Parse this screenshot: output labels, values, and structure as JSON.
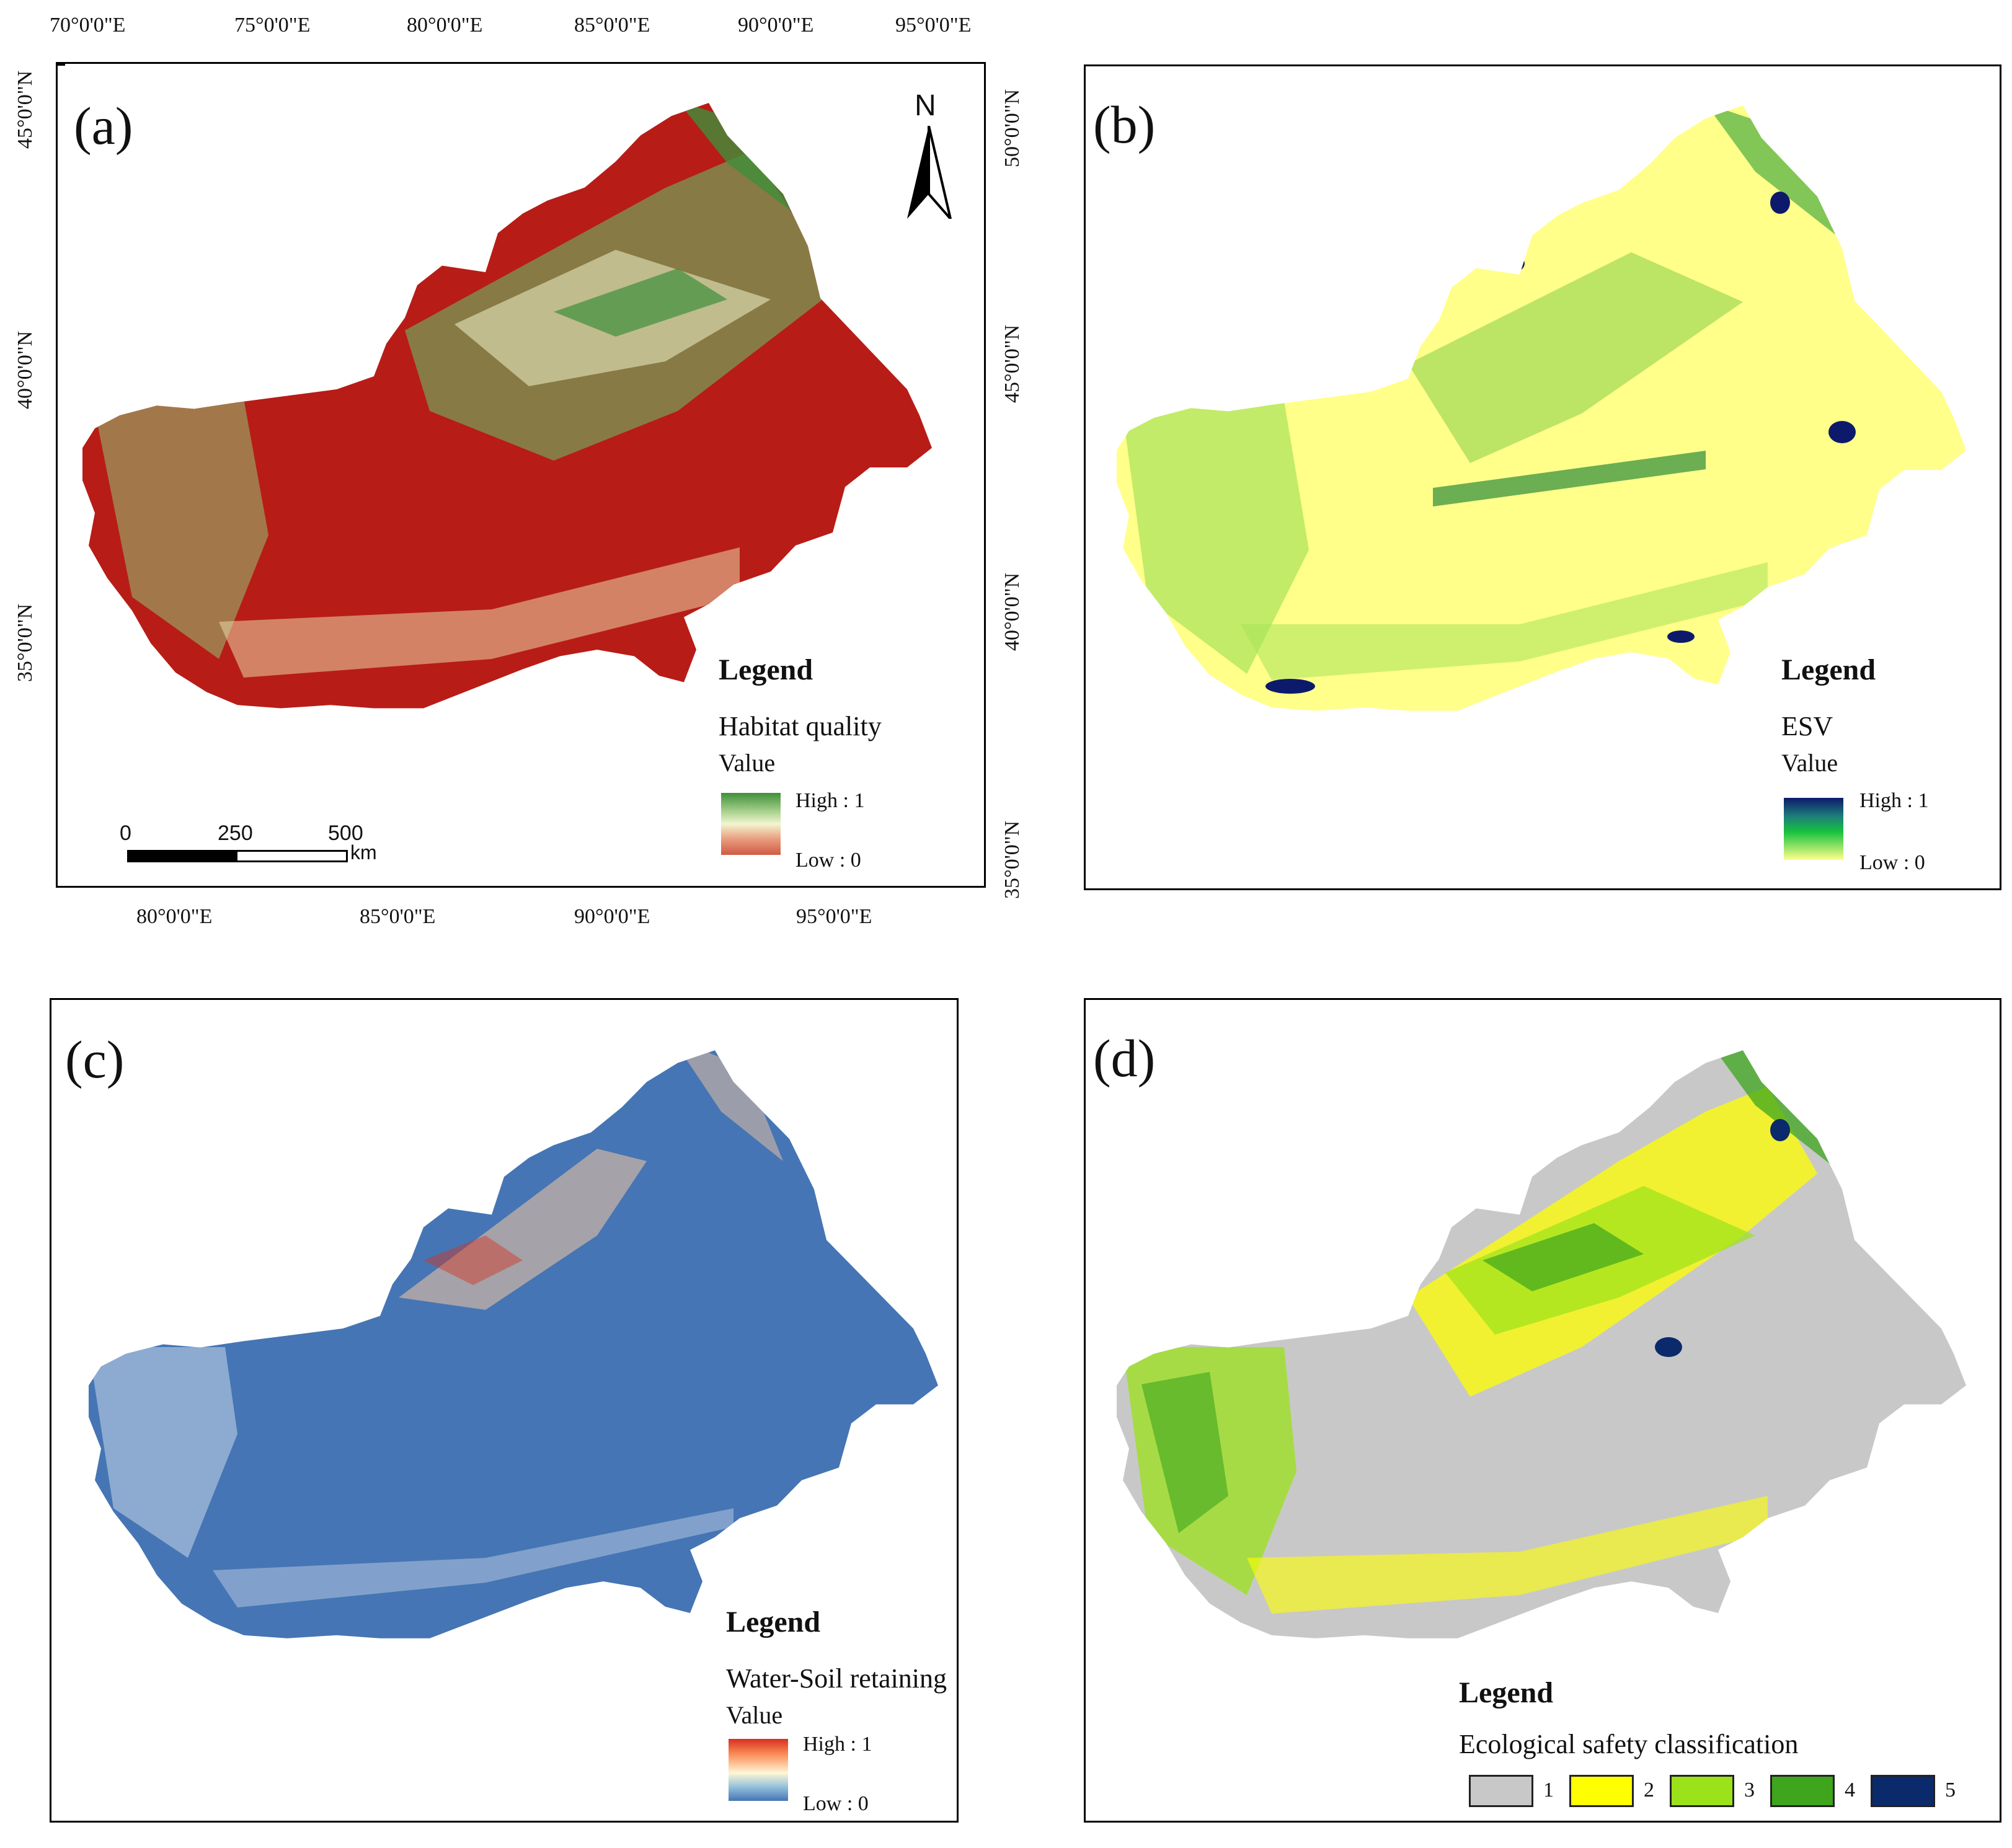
{
  "panels": {
    "a": {
      "label": "(a)",
      "legend": {
        "title": "Legend",
        "layer": "Habitat quality",
        "value_label": "Value",
        "high": "High : 1",
        "low": "Low : 0"
      },
      "north": "N",
      "scale": {
        "labels": [
          "0",
          "250",
          "500"
        ],
        "unit": "km"
      },
      "top_lon": [
        "70°0'0\"E",
        "75°0'0\"E",
        "80°0'0\"E",
        "85°0'0\"E",
        "90°0'0\"E",
        "95°0'0\"E"
      ],
      "bottom_lon": [
        "80°0'0\"E",
        "85°0'0\"E",
        "90°0'0\"E",
        "95°0'0\"E"
      ],
      "left_lat": [
        "45°0'0\"N",
        "40°0'0\"N",
        "35°0'0\"N"
      ],
      "right_lat": [
        "50°0'0\"N",
        "45°0'0\"N",
        "40°0'0\"N",
        "35°0'0\"N"
      ],
      "colors": {
        "high": "#3f8f3a",
        "mid": "#f3f5d0",
        "low": "#b81c17"
      }
    },
    "b": {
      "label": "(b)",
      "legend": {
        "title": "Legend",
        "layer": "ESV",
        "value_label": "Value",
        "high": "High : 1",
        "low": "Low : 0"
      },
      "colors": {
        "high": "#0d1a6b",
        "mid": "#18c23f",
        "low": "#ffff8a"
      }
    },
    "c": {
      "label": "(c)",
      "legend": {
        "title": "Legend",
        "layer": "Water-Soil retaining",
        "value_label": "Value",
        "high": "High : 1",
        "low": "Low : 0"
      },
      "colors": {
        "high": "#d7301f",
        "mid": "#fff7d6",
        "low": "#4575b4"
      }
    },
    "d": {
      "label": "(d)",
      "legend": {
        "title": "Legend",
        "layer": "Ecological safety classification"
      },
      "classes": [
        {
          "label": "1",
          "color": "#c8c8c8"
        },
        {
          "label": "2",
          "color": "#ffff00"
        },
        {
          "label": "3",
          "color": "#9be21a"
        },
        {
          "label": "4",
          "color": "#3ea51d"
        },
        {
          "label": "5",
          "color": "#0a2a6b"
        }
      ]
    }
  }
}
